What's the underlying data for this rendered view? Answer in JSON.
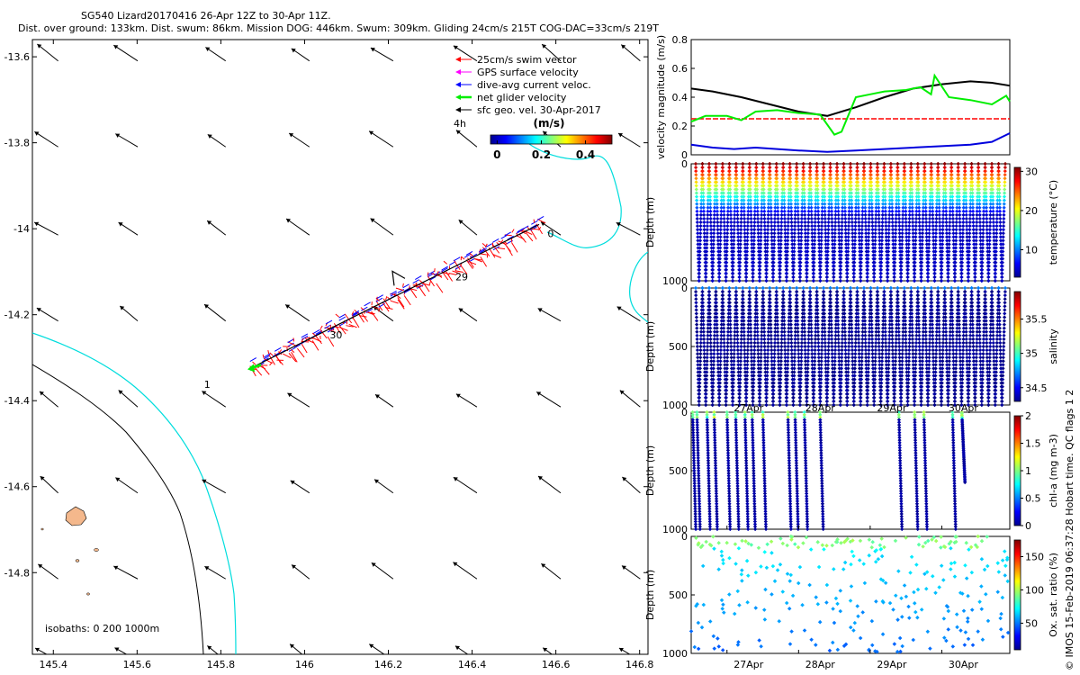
{
  "title_line1": "SG540 Lizard20170416 26-Apr 12Z to 30-Apr 11Z.",
  "title_line2": "Dist. over ground: 133km. Dist. swum: 86km. Mission DOG: 446km. Swum: 309km. Gliding 24cm/s 215T COG-DAC=33cm/s 219T",
  "side_label": "© IMOS 15-Feb-2019 06:37:28 Hobart time. QC flags 1  2",
  "colors": {
    "swim": "#ff0000",
    "gps": "#ff00ff",
    "current": "#0000ff",
    "net": "#00ee00",
    "geo": "#000000",
    "isobath0": "#000000",
    "isobath200": "#000000",
    "isobath1000": "#00dddd",
    "island": "#f4b88c",
    "dac_red": "#ff0000",
    "dac_green": "#00ee00",
    "dac_black": "#000000",
    "dac_blue": "#0000dd"
  },
  "chart_data": [
    {
      "type": "scatter",
      "name": "map",
      "x_ticks": [
        "145.4",
        "145.6",
        "145.8",
        "146",
        "146.2",
        "146.4",
        "146.6",
        "146.8"
      ],
      "y_ticks": [
        "-13.6",
        "-13.8",
        "-14",
        "-14.2",
        "-14.4",
        "-14.6",
        "-14.8"
      ],
      "xlim": [
        145.35,
        146.82
      ],
      "ylim": [
        -14.99,
        -13.56
      ],
      "legend": {
        "items": [
          {
            "label": "25cm/s swim vector",
            "color_key": "swim"
          },
          {
            "label": "GPS surface velocity",
            "color_key": "gps"
          },
          {
            "label": "dive-avg current veloc.",
            "color_key": "current"
          },
          {
            "label": "net glider velocity",
            "color_key": "net"
          },
          {
            "label": "sfc geo. vel. 30-Apr-2017",
            "color_key": "geo"
          }
        ],
        "placement": "top-right"
      },
      "colorbar": {
        "title": "(m/s)",
        "ticks": [
          "0",
          "0.2",
          "0.4"
        ],
        "range": [
          -0.03,
          0.52
        ],
        "corner_label": "4h"
      },
      "isobath_label": "isobaths: 0   200  1000m",
      "track": {
        "start": [
          145.87,
          -14.325
        ],
        "end": [
          146.56,
          -13.99
        ]
      },
      "day_labels": [
        {
          "text": "1",
          "lon": 145.76,
          "lat": -14.37
        },
        {
          "text": "30",
          "lon": 146.06,
          "lat": -14.255
        },
        {
          "text": "29",
          "lon": 146.36,
          "lat": -14.12
        },
        {
          "text": "0",
          "lon": 146.58,
          "lat": -14.02
        }
      ],
      "geo_vectors": {
        "lons": [
          145.39,
          145.58,
          145.79,
          145.99,
          146.19,
          146.39,
          146.59,
          146.78
        ],
        "lats": [
          -13.595,
          -13.795,
          -14.0,
          -14.2,
          -14.4,
          -14.6,
          -14.8,
          -14.99
        ],
        "dlon": -0.05,
        "dlat": 0.034
      }
    },
    {
      "type": "line",
      "name": "velocity",
      "ylabel": "velocity magnitude (m/s)",
      "y_ticks": [
        "0",
        "0.2",
        "0.4",
        "0.6",
        "0.8"
      ],
      "ylim": [
        0,
        0.8
      ],
      "xlim": [
        26.5,
        30.95
      ],
      "series": [
        {
          "name": "swim 25cm/s",
          "color_key": "dac_red",
          "dashed": true,
          "x": [
            26.5,
            30.95
          ],
          "y": [
            0.25,
            0.25
          ]
        },
        {
          "name": "black",
          "color_key": "dac_black",
          "x": [
            26.5,
            26.8,
            27.2,
            27.6,
            28.0,
            28.4,
            28.8,
            29.2,
            29.6,
            30.0,
            30.4,
            30.7,
            30.95
          ],
          "y": [
            0.46,
            0.44,
            0.4,
            0.35,
            0.3,
            0.27,
            0.33,
            0.4,
            0.46,
            0.49,
            0.51,
            0.5,
            0.48
          ]
        },
        {
          "name": "green",
          "color_key": "dac_green",
          "x": [
            26.5,
            26.7,
            27.0,
            27.2,
            27.4,
            27.7,
            28.0,
            28.3,
            28.5,
            28.6,
            28.8,
            29.0,
            29.2,
            29.5,
            29.7,
            29.85,
            29.9,
            30.1,
            30.4,
            30.7,
            30.9,
            30.95
          ],
          "y": [
            0.23,
            0.27,
            0.27,
            0.24,
            0.3,
            0.31,
            0.29,
            0.28,
            0.14,
            0.16,
            0.4,
            0.42,
            0.44,
            0.45,
            0.47,
            0.42,
            0.55,
            0.4,
            0.38,
            0.35,
            0.41,
            0.37
          ]
        },
        {
          "name": "blue",
          "color_key": "dac_blue",
          "x": [
            26.5,
            26.8,
            27.1,
            27.4,
            27.7,
            28.0,
            28.4,
            28.8,
            29.2,
            29.6,
            30.0,
            30.4,
            30.7,
            30.95
          ],
          "y": [
            0.07,
            0.05,
            0.04,
            0.05,
            0.04,
            0.03,
            0.02,
            0.03,
            0.04,
            0.05,
            0.06,
            0.07,
            0.09,
            0.15
          ]
        }
      ]
    },
    {
      "type": "scatter",
      "name": "temperature",
      "ylabel": "Depth (m)",
      "colorbar_label": "temperature (°C)",
      "y_ticks": [
        "0",
        "1000"
      ],
      "c_ticks": [
        "10",
        "20",
        "30"
      ],
      "crange": [
        3,
        31
      ],
      "profile": "temp",
      "dive_count": 46,
      "dive_max_depth": 1000
    },
    {
      "type": "scatter",
      "name": "salinity",
      "ylabel": "Depth (m)",
      "colorbar_label": "salinity",
      "y_ticks": [
        "0",
        "500",
        "1000"
      ],
      "c_ticks": [
        "34.5",
        "35",
        "35.5"
      ],
      "crange": [
        34.3,
        35.9
      ],
      "profile": "sal",
      "dive_count": 46,
      "dive_max_depth": 1000
    },
    {
      "type": "scatter",
      "name": "chla",
      "ylabel": "Depth (m)",
      "colorbar_label": "chl-a (mg m-3)",
      "y_ticks": [
        "0",
        "500",
        "1000"
      ],
      "c_ticks": [
        "0",
        "0.5",
        "1",
        "1.5",
        "2"
      ],
      "crange": [
        0,
        2
      ],
      "profile": "chl",
      "dives": [
        [
          26.52,
          1000
        ],
        [
          26.58,
          1000
        ],
        [
          26.72,
          1000
        ],
        [
          26.82,
          1000
        ],
        [
          27.0,
          1000
        ],
        [
          27.12,
          1000
        ],
        [
          27.25,
          1000
        ],
        [
          27.35,
          1000
        ],
        [
          27.5,
          1000
        ],
        [
          27.85,
          1000
        ],
        [
          27.95,
          1000
        ],
        [
          28.08,
          1000
        ],
        [
          28.3,
          1000
        ],
        [
          29.4,
          1000
        ],
        [
          29.62,
          1000
        ],
        [
          29.75,
          1000
        ],
        [
          30.15,
          1000
        ],
        [
          30.28,
          600
        ]
      ],
      "x_ticks": [
        {
          "label": "27Apr",
          "day": 27.0
        },
        {
          "label": "28Apr",
          "day": 28.0
        },
        {
          "label": "29Apr",
          "day": 29.0
        },
        {
          "label": "30Apr",
          "day": 30.0
        }
      ]
    },
    {
      "type": "scatter",
      "name": "oxygen",
      "ylabel": "Depth (m)",
      "colorbar_label": "Ox. sat. ratio (%)",
      "y_ticks": [
        "0",
        "500",
        "1000"
      ],
      "c_ticks": [
        "50",
        "100",
        "150"
      ],
      "crange": [
        10,
        175
      ],
      "profile": "ox",
      "dive_count": 46,
      "dive_max_depth": 1000,
      "x_ticks": [
        {
          "label": "27Apr",
          "day": 27.0
        },
        {
          "label": "28Apr",
          "day": 28.0
        },
        {
          "label": "29Apr",
          "day": 29.0
        },
        {
          "label": "30Apr",
          "day": 30.0
        }
      ]
    }
  ]
}
